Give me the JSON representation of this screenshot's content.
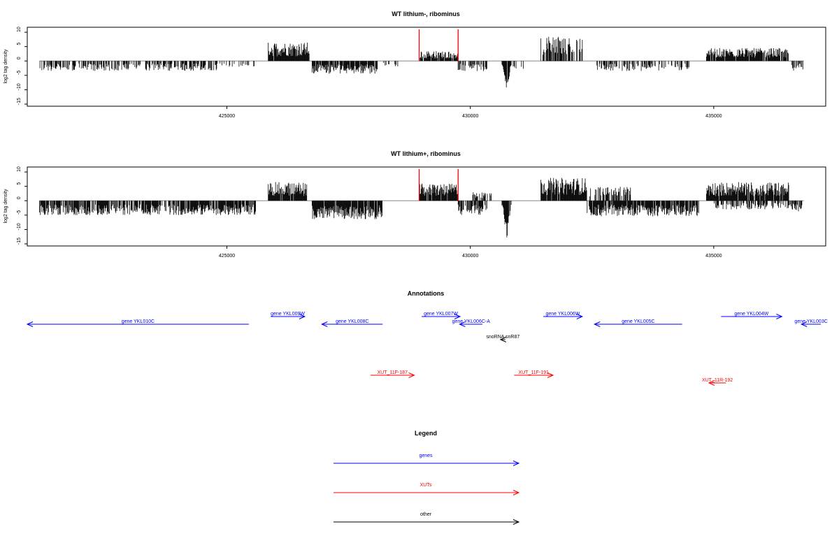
{
  "chart_data": [
    {
      "type": "bar",
      "title": "WT lithium-, ribominus",
      "ylabel": "log2 tag density",
      "xlim": [
        420900,
        437300
      ],
      "ylim": [
        -15,
        11
      ],
      "yticks": [
        -15,
        -10,
        -5,
        0,
        5,
        10
      ],
      "xticks": [
        425000,
        430000,
        435000
      ],
      "red_markers": [
        428950,
        429750
      ],
      "regions": [
        {
          "start": 421150,
          "end": 424800,
          "amp": 3.5,
          "sign": -1,
          "density": 0.55
        },
        {
          "start": 424800,
          "end": 425600,
          "amp": 2.0,
          "sign": -1,
          "density": 0.3
        },
        {
          "start": 425850,
          "end": 426700,
          "amp": 6.5,
          "sign": 1,
          "density": 0.95
        },
        {
          "start": 426750,
          "end": 428100,
          "amp": 4.5,
          "sign": -1,
          "density": 0.9
        },
        {
          "start": 428200,
          "end": 428550,
          "amp": 2.0,
          "sign": -1,
          "density": 0.3
        },
        {
          "start": 428950,
          "end": 429750,
          "amp": 3.5,
          "sign": 1,
          "density": 0.9
        },
        {
          "start": 429750,
          "end": 430350,
          "amp": 3.5,
          "sign": -1,
          "density": 0.55
        },
        {
          "start": 430650,
          "end": 430850,
          "amp": 11,
          "sign": -1,
          "density": 0.9
        },
        {
          "start": 430850,
          "end": 431100,
          "amp": 3.0,
          "sign": -1,
          "density": 0.4
        },
        {
          "start": 431450,
          "end": 432350,
          "amp": 8.5,
          "sign": 1,
          "density": 0.6
        },
        {
          "start": 432600,
          "end": 434500,
          "amp": 3.5,
          "sign": -1,
          "density": 0.5
        },
        {
          "start": 434850,
          "end": 436550,
          "amp": 4.5,
          "sign": 1,
          "density": 0.9
        },
        {
          "start": 436600,
          "end": 436850,
          "amp": 3.5,
          "sign": -1,
          "density": 0.5
        }
      ]
    },
    {
      "type": "bar",
      "title": "WT lithium+, ribominus",
      "ylabel": "log2 tag density",
      "xlim": [
        420900,
        437300
      ],
      "ylim": [
        -15,
        11
      ],
      "yticks": [
        -15,
        -10,
        -5,
        0,
        5,
        10
      ],
      "xticks": [
        425000,
        430000,
        435000
      ],
      "red_markers": [
        428950,
        429750
      ],
      "regions": [
        {
          "start": 421150,
          "end": 425600,
          "amp": 5.0,
          "sign": -1,
          "density": 0.8
        },
        {
          "start": 425850,
          "end": 426650,
          "amp": 6.5,
          "sign": 1,
          "density": 0.95
        },
        {
          "start": 426750,
          "end": 428200,
          "amp": 6.5,
          "sign": -1,
          "density": 0.95
        },
        {
          "start": 428950,
          "end": 429750,
          "amp": 6.0,
          "sign": 1,
          "density": 0.95
        },
        {
          "start": 429750,
          "end": 430350,
          "amp": 5.0,
          "sign": -1,
          "density": 0.8
        },
        {
          "start": 430050,
          "end": 430450,
          "amp": 3.0,
          "sign": 1,
          "density": 0.4
        },
        {
          "start": 430650,
          "end": 430850,
          "amp": 14,
          "sign": -1,
          "density": 0.9
        },
        {
          "start": 431450,
          "end": 432400,
          "amp": 8.0,
          "sign": 1,
          "density": 0.95
        },
        {
          "start": 432450,
          "end": 433300,
          "amp": 5.0,
          "sign": 1,
          "density": 0.5
        },
        {
          "start": 432400,
          "end": 434700,
          "amp": 5.5,
          "sign": -1,
          "density": 0.85
        },
        {
          "start": 434850,
          "end": 436550,
          "amp": 6.5,
          "sign": 1,
          "density": 0.95
        },
        {
          "start": 435000,
          "end": 436700,
          "amp": 3.0,
          "sign": -1,
          "density": 0.5
        },
        {
          "start": 436600,
          "end": 436850,
          "amp": 4.0,
          "sign": -1,
          "density": 0.6
        }
      ]
    },
    {
      "type": "diagram",
      "title": "Annotations",
      "features": [
        {
          "label": "gene YKL010C",
          "start": 420900,
          "end": 425450,
          "strand": "-",
          "kind": "gene",
          "tier": 1
        },
        {
          "label": "gene YKL009W",
          "start": 425900,
          "end": 426600,
          "strand": "+",
          "kind": "gene",
          "tier": 0
        },
        {
          "label": "gene YKL008C",
          "start": 426950,
          "end": 428200,
          "strand": "-",
          "kind": "gene",
          "tier": 1
        },
        {
          "label": "gene YKL007W",
          "start": 429000,
          "end": 429790,
          "strand": "+",
          "kind": "gene",
          "tier": 0
        },
        {
          "label": "gene YKL006C-A",
          "start": 429780,
          "end": 430250,
          "strand": "-",
          "kind": "gene",
          "tier": 1
        },
        {
          "label": "snoRNA snR87",
          "start": 430620,
          "end": 430720,
          "strand": "-",
          "kind": "other",
          "tier": 2
        },
        {
          "label": "gene YKL006W",
          "start": 431500,
          "end": 432300,
          "strand": "+",
          "kind": "gene",
          "tier": 0
        },
        {
          "label": "gene YKL005C",
          "start": 432550,
          "end": 434350,
          "strand": "-",
          "kind": "gene",
          "tier": 1
        },
        {
          "label": "gene YKL004W",
          "start": 435150,
          "end": 436400,
          "strand": "+",
          "kind": "gene",
          "tier": 0
        },
        {
          "label": "gene YKL003C",
          "start": 436800,
          "end": 437200,
          "strand": "-",
          "kind": "gene",
          "tier": 1
        },
        {
          "label": "XUT_11F-187",
          "start": 427950,
          "end": 428850,
          "strand": "+",
          "kind": "xut",
          "tier": 3
        },
        {
          "label": "XUT_11F-191",
          "start": 430900,
          "end": 431700,
          "strand": "+",
          "kind": "xut",
          "tier": 3
        },
        {
          "label": "XUT_11R-192",
          "start": 434900,
          "end": 435250,
          "strand": "-",
          "kind": "xut",
          "tier": 4
        }
      ]
    },
    {
      "type": "legend",
      "title": "Legend",
      "entries": [
        {
          "label": "genes",
          "color": "#0000ff"
        },
        {
          "label": "XUTs",
          "color": "#ff0000"
        },
        {
          "label": "other",
          "color": "#000000"
        }
      ]
    }
  ],
  "colors": {
    "gene": "#0000ff",
    "xut": "#ff0000",
    "other": "#000000",
    "marker": "#ff0000",
    "bars": "#000000"
  }
}
